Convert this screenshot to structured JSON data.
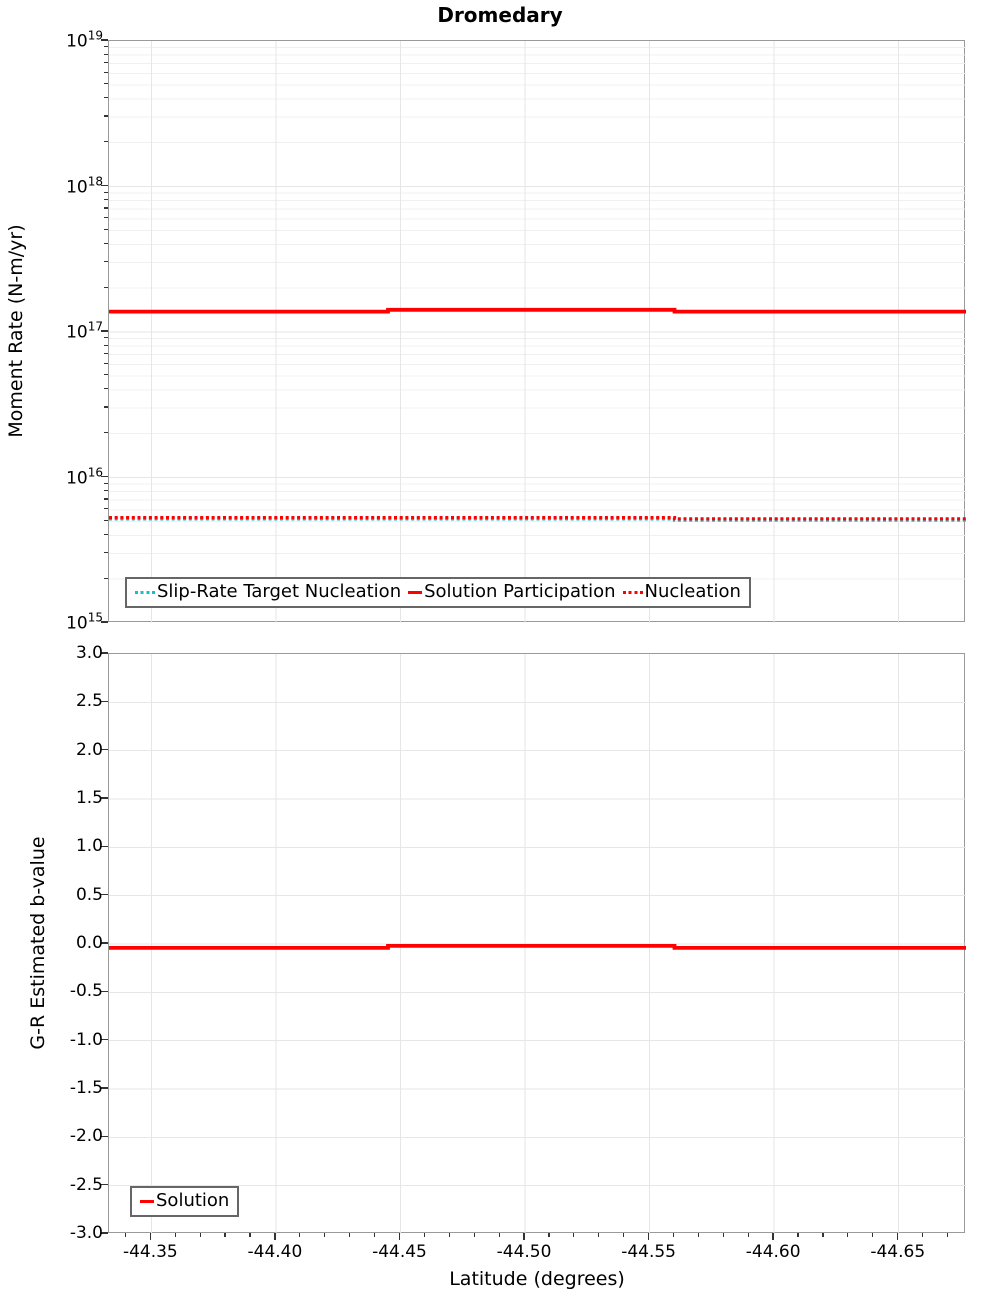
{
  "title": "Dromedary",
  "colors": {
    "series_red": "#ff0000",
    "series_cyan": "#17becf",
    "grid_minor": "#f0f0f0",
    "grid_major": "#e6e6e6",
    "plot_border": "#9a9a9a",
    "legend_border": "#666666",
    "tick_color": "#333333"
  },
  "chart_data": [
    {
      "type": "line",
      "panel": "moment-rate",
      "title": "Dromedary",
      "xlabel": "Latitude (degrees)",
      "ylabel": "Moment Rate (N-m/yr)",
      "x_inverted": true,
      "x_range": [
        -44.333,
        -44.677
      ],
      "x_ticks": {
        "values": [
          -44.35,
          -44.4,
          -44.45,
          -44.5,
          -44.55,
          -44.6,
          -44.65
        ],
        "labels": [
          "-44.35",
          "-44.40",
          "-44.45",
          "-44.50",
          "-44.55",
          "-44.60",
          "-44.65"
        ]
      },
      "x_minor_tick_step": 0.01,
      "y_scale": "log",
      "y_range": [
        1000000000000000.0,
        1e+19
      ],
      "y_tick_exponents": [
        19,
        18,
        17,
        16,
        15
      ],
      "grid": true,
      "legend_position": "bottom-left",
      "series": [
        {
          "name": "Slip-Rate Target Nucleation",
          "color": "#17becf",
          "line": "dotted",
          "points": [
            [
              -44.333,
              5300000000000000.0
            ],
            [
              -44.56,
              5300000000000000.0
            ],
            [
              -44.56,
              5200000000000000.0
            ],
            [
              -44.677,
              5200000000000000.0
            ]
          ]
        },
        {
          "name": "Solution Participation",
          "color": "#ff0000",
          "line": "solid",
          "points": [
            [
              -44.333,
              1.38e+17
            ],
            [
              -44.445,
              1.38e+17
            ],
            [
              -44.445,
              1.42e+17
            ],
            [
              -44.56,
              1.42e+17
            ],
            [
              -44.56,
              1.38e+17
            ],
            [
              -44.677,
              1.38e+17
            ]
          ]
        },
        {
          "name": "Nucleation",
          "color": "#ff0000",
          "line": "dotted",
          "points": [
            [
              -44.333,
              5300000000000000.0
            ],
            [
              -44.56,
              5300000000000000.0
            ],
            [
              -44.56,
              5200000000000000.0
            ],
            [
              -44.677,
              5200000000000000.0
            ]
          ]
        }
      ]
    },
    {
      "type": "line",
      "panel": "b-value",
      "xlabel": "Latitude (degrees)",
      "ylabel": "G-R Estimated b-value",
      "x_inverted": true,
      "x_range": [
        -44.333,
        -44.677
      ],
      "x_ticks": {
        "values": [
          -44.35,
          -44.4,
          -44.45,
          -44.5,
          -44.55,
          -44.6,
          -44.65
        ],
        "labels": [
          "-44.35",
          "-44.40",
          "-44.45",
          "-44.50",
          "-44.55",
          "-44.60",
          "-44.65"
        ]
      },
      "x_minor_tick_step": 0.01,
      "y_scale": "linear",
      "y_range": [
        -3.0,
        3.0
      ],
      "y_ticks": {
        "values": [
          3.0,
          2.5,
          2.0,
          1.5,
          1.0,
          0.5,
          0.0,
          -0.5,
          -1.0,
          -1.5,
          -2.0,
          -2.5,
          -3.0
        ],
        "labels": [
          "3.0",
          "2.5",
          "2.0",
          "1.5",
          "1.0",
          "0.5",
          "0.0",
          "-0.5",
          "-1.0",
          "-1.5",
          "-2.0",
          "-2.5",
          "-3.0"
        ]
      },
      "grid": true,
      "legend_position": "bottom-left",
      "series": [
        {
          "name": "Solution",
          "color": "#ff0000",
          "line": "solid",
          "points": [
            [
              -44.333,
              -0.04
            ],
            [
              -44.445,
              -0.04
            ],
            [
              -44.445,
              -0.02
            ],
            [
              -44.56,
              -0.02
            ],
            [
              -44.56,
              -0.04
            ],
            [
              -44.677,
              -0.04
            ]
          ]
        }
      ]
    }
  ]
}
